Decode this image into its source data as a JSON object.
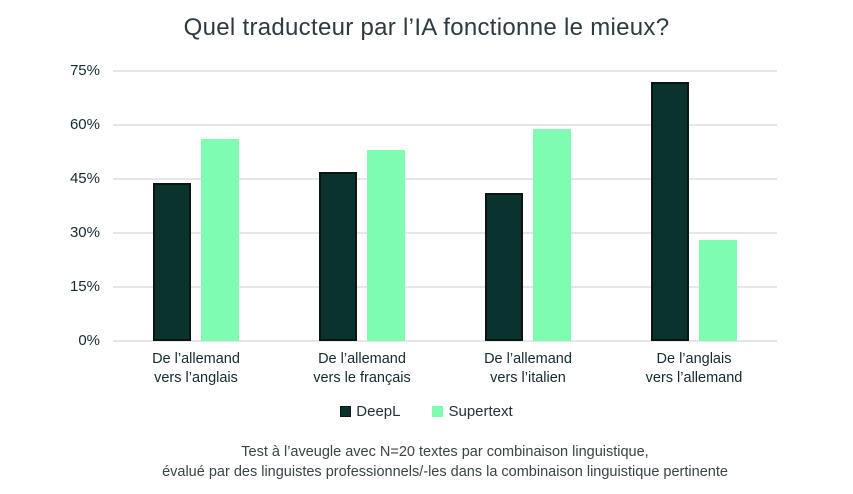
{
  "chart_data": {
    "type": "bar",
    "title": "Quel traducteur par l’IA fonctionne le mieux?",
    "categories": [
      "De l’allemand\nvers l’anglais",
      "De l’allemand\nvers le français",
      "De l’allemand\nvers l’italien",
      "De l’anglais\nvers l’allemand"
    ],
    "series": [
      {
        "name": "DeepL",
        "color": "#0a332e",
        "border_color": "#0a1514",
        "values": [
          44,
          47,
          41,
          72
        ]
      },
      {
        "name": "Supertext",
        "color": "#7dfcb2",
        "border_color": "",
        "values": [
          56,
          53,
          59,
          28
        ]
      }
    ],
    "y_ticks": [
      {
        "value": 0,
        "label": "0%"
      },
      {
        "value": 15,
        "label": "15%"
      },
      {
        "value": 30,
        "label": "30%"
      },
      {
        "value": 45,
        "label": "45%"
      },
      {
        "value": 60,
        "label": "60%"
      },
      {
        "value": 75,
        "label": "75%"
      }
    ],
    "ylim": [
      0,
      75
    ],
    "grid": true,
    "legend_position": "bottom",
    "footnote": "Test à l’aveugle avec N=20 textes par combinaison linguistique,\névalué par des linguistes professionnels/-les dans la combinaison linguistique pertinente"
  }
}
